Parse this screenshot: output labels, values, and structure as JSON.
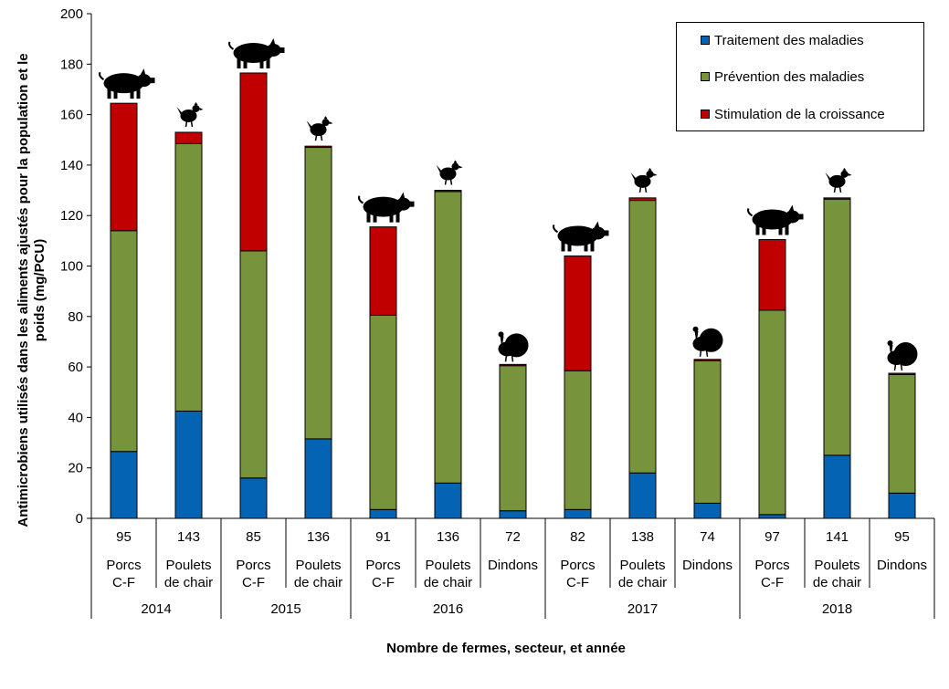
{
  "chart_data": {
    "type": "bar",
    "stacked": true,
    "title": "",
    "ylabel": "Antimicrobiens utilisés dans les aliments ajustés pour la population et le poids (mg/PCU)",
    "xlabel": "Nombre de fermes, secteur, et année",
    "ylim": [
      0,
      200
    ],
    "ytick_step": 20,
    "yticks": [
      "0",
      "20",
      "40",
      "60",
      "80",
      "100",
      "120",
      "140",
      "160",
      "180",
      "200"
    ],
    "colors": {
      "treatment": "#0563b3",
      "prevention": "#77933c",
      "growth": "#c00000"
    },
    "legend": [
      {
        "key": "treatment",
        "label": "Traitement des maladies"
      },
      {
        "key": "prevention",
        "label": "Prévention des maladies"
      },
      {
        "key": "growth",
        "label": "Stimulation de la croissance"
      }
    ],
    "years": [
      "2014",
      "2015",
      "2016",
      "2017",
      "2018"
    ],
    "bars": [
      {
        "year": "2014",
        "farms": "95",
        "sector": [
          "Porcs",
          "C-F"
        ],
        "animal": "pig",
        "treatment": 26.5,
        "prevention": 87.5,
        "growth": 50.5
      },
      {
        "year": "2014",
        "farms": "143",
        "sector": [
          "Poulets",
          "de chair"
        ],
        "animal": "chicken",
        "treatment": 42.5,
        "prevention": 106.0,
        "growth": 4.5
      },
      {
        "year": "2015",
        "farms": "85",
        "sector": [
          "Porcs",
          "C-F"
        ],
        "animal": "pig",
        "treatment": 16.0,
        "prevention": 90.0,
        "growth": 70.5
      },
      {
        "year": "2015",
        "farms": "136",
        "sector": [
          "Poulets",
          "de chair"
        ],
        "animal": "chicken",
        "treatment": 31.5,
        "prevention": 115.5,
        "growth": 0.5
      },
      {
        "year": "2016",
        "farms": "91",
        "sector": [
          "Porcs",
          "C-F"
        ],
        "animal": "pig",
        "treatment": 3.5,
        "prevention": 77.0,
        "growth": 35.0
      },
      {
        "year": "2016",
        "farms": "136",
        "sector": [
          "Poulets",
          "de chair"
        ],
        "animal": "chicken",
        "treatment": 14.0,
        "prevention": 115.5,
        "growth": 0.5
      },
      {
        "year": "2016",
        "farms": "72",
        "sector": [
          "Dindons"
        ],
        "animal": "turkey",
        "treatment": 3.0,
        "prevention": 57.5,
        "growth": 0.5
      },
      {
        "year": "2017",
        "farms": "82",
        "sector": [
          "Porcs",
          "C-F"
        ],
        "animal": "pig",
        "treatment": 3.5,
        "prevention": 55.0,
        "growth": 45.5
      },
      {
        "year": "2017",
        "farms": "138",
        "sector": [
          "Poulets",
          "de chair"
        ],
        "animal": "chicken",
        "treatment": 18.0,
        "prevention": 108.0,
        "growth": 1.0
      },
      {
        "year": "2017",
        "farms": "74",
        "sector": [
          "Dindons"
        ],
        "animal": "turkey",
        "treatment": 6.0,
        "prevention": 56.5,
        "growth": 0.5
      },
      {
        "year": "2018",
        "farms": "97",
        "sector": [
          "Porcs",
          "C-F"
        ],
        "animal": "pig",
        "treatment": 1.5,
        "prevention": 81.0,
        "growth": 28.0
      },
      {
        "year": "2018",
        "farms": "141",
        "sector": [
          "Poulets",
          "de chair"
        ],
        "animal": "chicken",
        "treatment": 25.0,
        "prevention": 101.5,
        "growth": 0.5
      },
      {
        "year": "2018",
        "farms": "95",
        "sector": [
          "Dindons"
        ],
        "animal": "turkey",
        "treatment": 10.0,
        "prevention": 47.0,
        "growth": 0.5
      }
    ]
  }
}
